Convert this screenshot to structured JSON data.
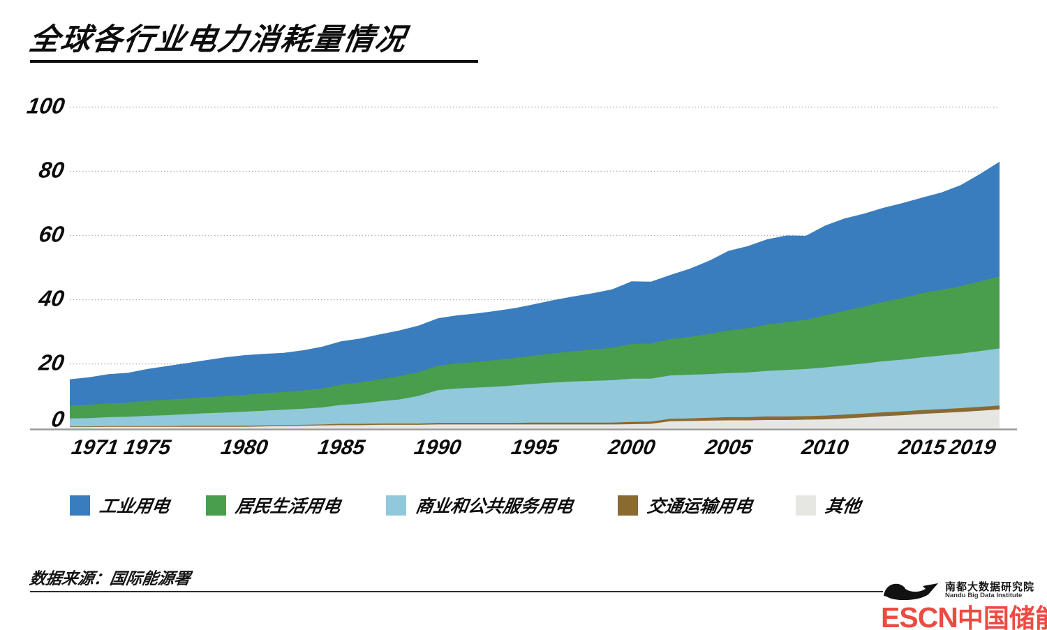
{
  "title": "全球各行业电力消耗量情况",
  "source": "数据来源：国际能源署",
  "logo": {
    "org": "南都大数据研究院",
    "org_en": "Nandu Big Data Institute",
    "site_escn": "ESCN",
    "site_cn": "中国储能网",
    "site_color": "#EC4B42",
    "swoosh_color": "#111111"
  },
  "colors": {
    "industry": "#3A7DBE",
    "residential": "#489E4C",
    "commercial": "#91C8DC",
    "transport": "#8B6A32",
    "other": "#E6E6E3",
    "gridline": "#b4b4b4",
    "axis_line": "#999999",
    "text": "#0d0d0d"
  },
  "chart_data": {
    "type": "area",
    "stacked": true,
    "title": "全球各行业电力消耗量情况",
    "xlabel": "",
    "ylabel": "",
    "ylim": [
      0,
      100
    ],
    "yticks": [
      0,
      20,
      40,
      60,
      80,
      100
    ],
    "grid": "dotted-horizontal",
    "legend_position": "bottom",
    "x_tick_labels": [
      "1971",
      "1975",
      "1980",
      "1985",
      "1990",
      "1995",
      "2000",
      "2005",
      "2010",
      "2015",
      "2019"
    ],
    "x": [
      1971,
      1972,
      1973,
      1974,
      1975,
      1976,
      1977,
      1978,
      1979,
      1980,
      1981,
      1982,
      1983,
      1984,
      1985,
      1986,
      1987,
      1988,
      1989,
      1990,
      1991,
      1992,
      1993,
      1994,
      1995,
      1996,
      1997,
      1998,
      1999,
      2000,
      2001,
      2002,
      2003,
      2004,
      2005,
      2006,
      2007,
      2008,
      2009,
      2010,
      2011,
      2012,
      2013,
      2014,
      2015,
      2016,
      2017,
      2018,
      2019
    ],
    "stack_order_bottom_to_top": [
      "other",
      "transport",
      "commercial",
      "residential",
      "industry"
    ],
    "series": [
      {
        "id": "industry",
        "name": "工业用电",
        "color": "#3A7DBE",
        "values": [
          8.2,
          8.6,
          9.1,
          9.3,
          9.9,
          10.5,
          11.0,
          11.5,
          12.1,
          12.4,
          12.3,
          12.2,
          12.5,
          13.0,
          13.5,
          13.7,
          14.0,
          14.3,
          14.5,
          14.8,
          15.0,
          15.1,
          15.3,
          15.6,
          16.0,
          16.6,
          17.1,
          17.6,
          18.2,
          19.5,
          19.3,
          20.0,
          21.2,
          22.8,
          24.8,
          25.6,
          26.6,
          27.0,
          26.2,
          28.0,
          28.8,
          29.0,
          29.3,
          29.6,
          29.8,
          30.3,
          31.5,
          33.5,
          35.8
        ]
      },
      {
        "id": "residential",
        "name": "居民生活用电",
        "color": "#489E4C",
        "values": [
          4.0,
          4.1,
          4.3,
          4.4,
          4.7,
          4.8,
          4.9,
          5.0,
          5.1,
          5.2,
          5.4,
          5.5,
          5.7,
          5.9,
          6.3,
          6.6,
          6.9,
          7.2,
          7.4,
          7.6,
          7.8,
          8.0,
          8.3,
          8.5,
          8.8,
          9.1,
          9.4,
          9.7,
          10.1,
          10.8,
          10.9,
          11.3,
          11.8,
          12.5,
          13.3,
          13.8,
          14.4,
          14.9,
          15.3,
          16.2,
          17.0,
          17.7,
          18.5,
          19.2,
          20.0,
          20.5,
          21.0,
          21.7,
          22.4
        ]
      },
      {
        "id": "commercial",
        "name": "商业和公共服务用电",
        "color": "#91C8DC",
        "values": [
          2.5,
          2.6,
          2.8,
          2.9,
          3.2,
          3.4,
          3.6,
          3.9,
          4.1,
          4.4,
          4.6,
          4.8,
          5.0,
          5.3,
          5.9,
          6.3,
          6.9,
          7.5,
          8.6,
          10.2,
          10.7,
          11.0,
          11.3,
          11.7,
          12.1,
          12.5,
          12.8,
          13.0,
          13.2,
          13.5,
          13.4,
          13.5,
          13.6,
          13.6,
          13.7,
          13.9,
          14.2,
          14.5,
          14.7,
          15.0,
          15.3,
          15.6,
          15.9,
          16.1,
          16.4,
          16.7,
          17.0,
          17.4,
          17.8
        ]
      },
      {
        "id": "transport",
        "name": "交通运输用电",
        "color": "#8B6A32",
        "values": [
          0.2,
          0.2,
          0.2,
          0.2,
          0.2,
          0.2,
          0.3,
          0.3,
          0.3,
          0.3,
          0.3,
          0.3,
          0.3,
          0.3,
          0.4,
          0.4,
          0.4,
          0.4,
          0.4,
          0.5,
          0.5,
          0.5,
          0.5,
          0.5,
          0.6,
          0.6,
          0.6,
          0.6,
          0.6,
          0.7,
          0.7,
          0.8,
          0.8,
          0.9,
          1.0,
          1.0,
          1.1,
          1.1,
          1.1,
          1.2,
          1.2,
          1.2,
          1.2,
          1.2,
          1.2,
          1.2,
          1.2,
          1.2,
          1.2
        ]
      },
      {
        "id": "other",
        "name": "其他",
        "color": "#E6E6E3",
        "values": [
          0.3,
          0.3,
          0.4,
          0.4,
          0.4,
          0.4,
          0.4,
          0.4,
          0.4,
          0.4,
          0.5,
          0.6,
          0.7,
          0.8,
          0.9,
          0.9,
          1.0,
          1.0,
          1.0,
          1.1,
          1.1,
          1.1,
          1.1,
          1.1,
          1.1,
          1.1,
          1.1,
          1.1,
          1.1,
          1.2,
          1.3,
          2.1,
          2.2,
          2.3,
          2.4,
          2.4,
          2.5,
          2.5,
          2.6,
          2.7,
          3.0,
          3.3,
          3.7,
          4.0,
          4.4,
          4.7,
          5.0,
          5.4,
          5.8
        ]
      }
    ]
  }
}
